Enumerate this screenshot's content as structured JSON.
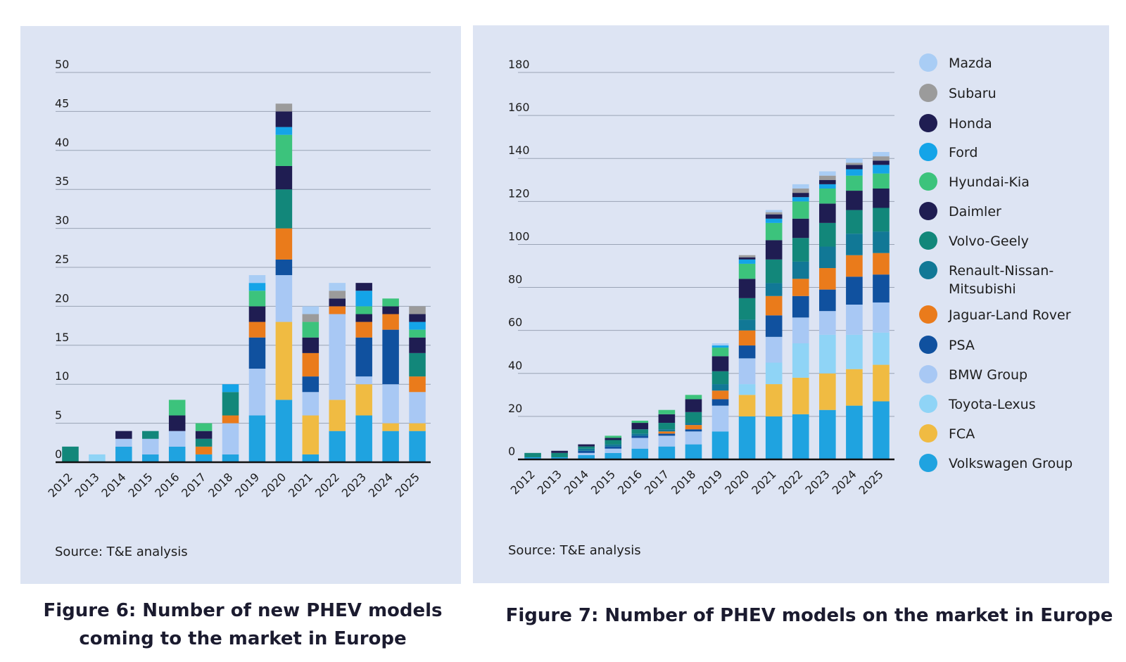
{
  "chart_data": [
    {
      "type": "bar",
      "stacked": true,
      "title": "Figure 6: Number of new PHEV models coming to the market in Europe",
      "source": "Source: T&E analysis",
      "categories": [
        "2012",
        "2013",
        "2014",
        "2015",
        "2016",
        "2017",
        "2018",
        "2019",
        "2020",
        "2021",
        "2022",
        "2023",
        "2024",
        "2025"
      ],
      "ylim": [
        0,
        50
      ],
      "yticks": [
        0,
        5,
        10,
        15,
        20,
        25,
        30,
        35,
        40,
        45,
        50
      ],
      "grid": true,
      "series": [
        {
          "name": "Volkswagen Group",
          "values": [
            0,
            0,
            2,
            1,
            2,
            1,
            1,
            6,
            8,
            1,
            4,
            6,
            4,
            4
          ]
        },
        {
          "name": "FCA",
          "values": [
            0,
            0,
            0,
            0,
            0,
            0,
            0,
            0,
            10,
            5,
            4,
            4,
            1,
            1
          ]
        },
        {
          "name": "Toyota-Lexus",
          "values": [
            0,
            1,
            0,
            0,
            0,
            0,
            0,
            0,
            0,
            0,
            0,
            0,
            0,
            0
          ]
        },
        {
          "name": "BMW Group",
          "values": [
            0,
            0,
            1,
            2,
            2,
            0,
            4,
            6,
            6,
            3,
            11,
            1,
            5,
            4
          ]
        },
        {
          "name": "PSA",
          "values": [
            0,
            0,
            0,
            0,
            0,
            0,
            0,
            4,
            2,
            2,
            0,
            5,
            7,
            0
          ]
        },
        {
          "name": "Jaguar-Land Rover",
          "values": [
            0,
            0,
            0,
            0,
            0,
            1,
            1,
            2,
            4,
            3,
            1,
            2,
            2,
            2
          ]
        },
        {
          "name": "Renault-Nissan-Mitsubishi",
          "values": [
            0,
            0,
            0,
            0,
            0,
            0,
            0,
            0,
            0,
            0,
            0,
            0,
            0,
            0
          ]
        },
        {
          "name": "Volvo-Geely",
          "values": [
            2,
            0,
            0,
            1,
            0,
            1,
            3,
            0,
            5,
            0,
            0,
            0,
            0,
            3
          ]
        },
        {
          "name": "Daimler",
          "values": [
            0,
            0,
            1,
            0,
            2,
            1,
            0,
            2,
            3,
            2,
            1,
            1,
            1,
            2
          ]
        },
        {
          "name": "Hyundai-Kia",
          "values": [
            0,
            0,
            0,
            0,
            2,
            1,
            0,
            2,
            4,
            2,
            0,
            1,
            1,
            1
          ]
        },
        {
          "name": "Ford",
          "values": [
            0,
            0,
            0,
            0,
            0,
            0,
            1,
            1,
            1,
            0,
            0,
            2,
            0,
            1
          ]
        },
        {
          "name": "Honda",
          "values": [
            0,
            0,
            0,
            0,
            0,
            0,
            0,
            0,
            2,
            0,
            0,
            1,
            0,
            1
          ]
        },
        {
          "name": "Subaru",
          "values": [
            0,
            0,
            0,
            0,
            0,
            0,
            0,
            0,
            1,
            1,
            1,
            0,
            0,
            1
          ]
        },
        {
          "name": "Mazda",
          "values": [
            0,
            0,
            0,
            0,
            0,
            0,
            0,
            1,
            0,
            1,
            1,
            0,
            0,
            0
          ]
        }
      ]
    },
    {
      "type": "bar",
      "stacked": true,
      "title": "Figure 7: Number of PHEV models on the market in Europe",
      "source": "Source: T&E analysis",
      "categories": [
        "2012",
        "2013",
        "2014",
        "2015",
        "2016",
        "2017",
        "2018",
        "2019",
        "2020",
        "2021",
        "2022",
        "2023",
        "2024",
        "2025"
      ],
      "ylim": [
        0,
        180
      ],
      "yticks": [
        0,
        20,
        40,
        60,
        80,
        100,
        120,
        140,
        160,
        180
      ],
      "grid": true,
      "legend": "right",
      "series": [
        {
          "name": "Volkswagen Group",
          "values": [
            1,
            1,
            2,
            3,
            5,
            6,
            7,
            13,
            20,
            20,
            21,
            23,
            25,
            27
          ]
        },
        {
          "name": "FCA",
          "values": [
            0,
            0,
            0,
            0,
            0,
            0,
            0,
            0,
            10,
            15,
            17,
            17,
            17,
            17
          ]
        },
        {
          "name": "Toyota-Lexus",
          "values": [
            0,
            0,
            0,
            0,
            0,
            0,
            0,
            0,
            5,
            10,
            16,
            18,
            16,
            15
          ]
        },
        {
          "name": "BMW Group",
          "values": [
            0,
            0,
            1,
            2,
            5,
            5,
            6,
            12,
            12,
            12,
            12,
            11,
            14,
            14
          ]
        },
        {
          "name": "PSA",
          "values": [
            0,
            0,
            1,
            1,
            1,
            1,
            1,
            3,
            6,
            10,
            10,
            10,
            13,
            13
          ]
        },
        {
          "name": "Jaguar-Land Rover",
          "values": [
            0,
            0,
            0,
            0,
            0,
            1,
            2,
            4,
            7,
            9,
            8,
            10,
            10,
            10
          ]
        },
        {
          "name": "Renault-Nissan-Mitsubishi",
          "values": [
            0,
            0,
            1,
            1,
            1,
            1,
            1,
            3,
            5,
            6,
            8,
            10,
            10,
            10
          ]
        },
        {
          "name": "Volvo-Geely",
          "values": [
            2,
            2,
            1,
            2,
            2,
            3,
            5,
            6,
            10,
            11,
            11,
            11,
            11,
            11
          ]
        },
        {
          "name": "Daimler",
          "values": [
            0,
            1,
            1,
            1,
            3,
            4,
            6,
            7,
            9,
            9,
            9,
            9,
            9,
            9
          ]
        },
        {
          "name": "Hyundai-Kia",
          "values": [
            0,
            0,
            0,
            1,
            1,
            2,
            2,
            4,
            7,
            8,
            8,
            7,
            7,
            7
          ]
        },
        {
          "name": "Ford",
          "values": [
            0,
            0,
            0,
            0,
            0,
            0,
            0,
            1,
            2,
            2,
            2,
            2,
            3,
            4
          ]
        },
        {
          "name": "Honda",
          "values": [
            0,
            0,
            0,
            0,
            0,
            0,
            0,
            0,
            1,
            2,
            2,
            2,
            2,
            2
          ]
        },
        {
          "name": "Subaru",
          "values": [
            0,
            0,
            0,
            0,
            0,
            0,
            0,
            0,
            1,
            1,
            2,
            2,
            1,
            2
          ]
        },
        {
          "name": "Mazda",
          "values": [
            0,
            0,
            0,
            0,
            0,
            0,
            0,
            1,
            0,
            1,
            2,
            2,
            2,
            2
          ]
        }
      ]
    }
  ],
  "colors": {
    "Volkswagen Group": "#1fa3e0",
    "FCA": "#f0bb42",
    "Toyota-Lexus": "#8fd4f6",
    "BMW Group": "#a8c8f4",
    "PSA": "#10519f",
    "Jaguar-Land Rover": "#ea7b1b",
    "Renault-Nissan-Mitsubishi": "#117896",
    "Volvo-Geely": "#12877a",
    "Daimler": "#1f1d52",
    "Hyundai-Kia": "#3cc37c",
    "Ford": "#14a4e8",
    "Honda": "#1f1d52",
    "Subaru": "#9b9b9b",
    "Mazda": "#a9cdf5"
  },
  "legend_order": [
    "Mazda",
    "Subaru",
    "Honda",
    "Ford",
    "Hyundai-Kia",
    "Daimler",
    "Volvo-Geely",
    "Renault-Nissan-Mitsubishi",
    "Jaguar-Land Rover",
    "PSA",
    "BMW Group",
    "Toyota-Lexus",
    "FCA",
    "Volkswagen Group"
  ],
  "legend_labels": {
    "Renault-Nissan-Mitsubishi": [
      "Renault-Nissan-",
      "Mitsubishi"
    ]
  }
}
